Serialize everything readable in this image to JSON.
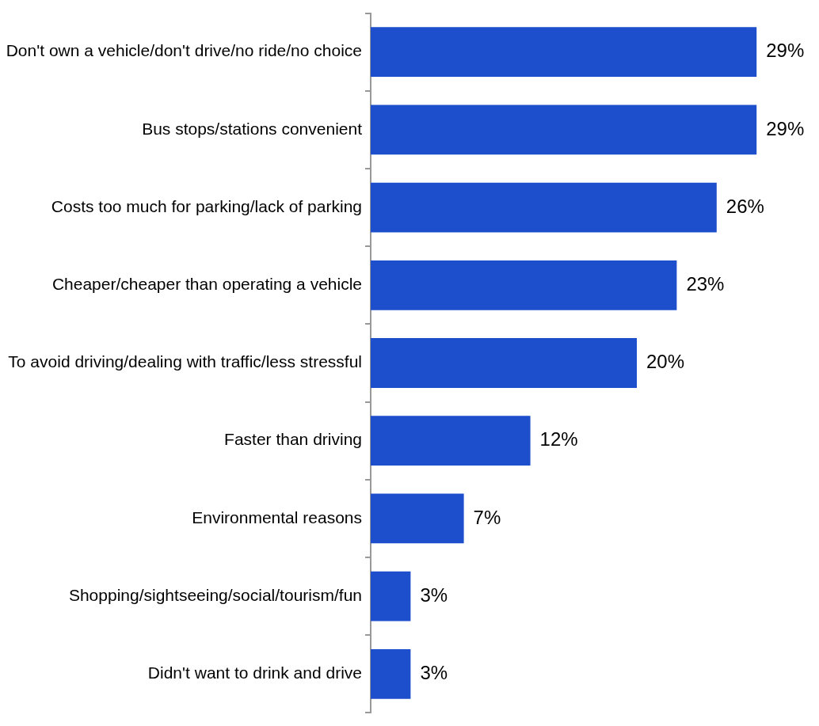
{
  "chart_data": {
    "type": "bar",
    "orientation": "horizontal",
    "categories": [
      "Don't own a vehicle/don't drive/no ride/no choice",
      "Bus stops/stations convenient",
      "Costs too much for parking/lack of parking",
      "Cheaper/cheaper than operating a vehicle",
      "To avoid driving/dealing with traffic/less stressful",
      "Faster than driving",
      "Environmental reasons",
      "Shopping/sightseeing/social/tourism/fun",
      "Didn't want to drink and drive"
    ],
    "values": [
      29,
      29,
      26,
      23,
      20,
      12,
      7,
      3,
      3
    ],
    "value_labels": [
      "29%",
      "29%",
      "26%",
      "23%",
      "20%",
      "12%",
      "7%",
      "3%",
      "3%"
    ],
    "color": "#1d4fcc",
    "tick_labels": "y",
    "grid": false,
    "legend": false
  }
}
